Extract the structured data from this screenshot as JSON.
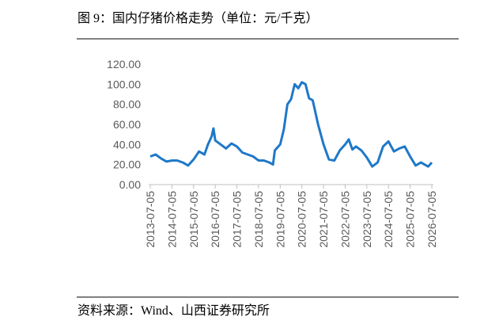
{
  "chart_data": {
    "type": "line",
    "title": "图 9：国内仔猪价格走势（单位：元/千克）",
    "source": "资料来源：Wind、山西证券研究所",
    "ylim": [
      0,
      120
    ],
    "yticks": [
      {
        "value": 0,
        "label": "0.00"
      },
      {
        "value": 20,
        "label": "20.00"
      },
      {
        "value": 40,
        "label": "40.00"
      },
      {
        "value": 60,
        "label": "60.00"
      },
      {
        "value": 80,
        "label": "80.00"
      },
      {
        "value": 100,
        "label": "100.00"
      },
      {
        "value": 120,
        "label": "120.00"
      }
    ],
    "xlim": [
      "2013-07-05",
      "2026-07-05"
    ],
    "xticks": [
      "2013-07-05",
      "2014-07-05",
      "2015-07-05",
      "2016-07-05",
      "2017-07-05",
      "2018-07-05",
      "2019-07-05",
      "2020-07-05",
      "2021-07-05",
      "2022-07-05",
      "2023-07-05",
      "2024-07-05",
      "2025-07-05",
      "2026-07-05"
    ],
    "x": [
      "2013-07-05",
      "2013-10-05",
      "2014-01-05",
      "2014-04-05",
      "2014-07-05",
      "2014-10-05",
      "2015-01-05",
      "2015-04-05",
      "2015-07-05",
      "2015-10-05",
      "2016-01-05",
      "2016-03-05",
      "2016-05-05",
      "2016-06-05",
      "2016-07-05",
      "2016-10-05",
      "2017-01-05",
      "2017-04-05",
      "2017-07-05",
      "2017-10-05",
      "2018-01-05",
      "2018-04-05",
      "2018-07-05",
      "2018-10-05",
      "2019-01-05",
      "2019-03-05",
      "2019-04-05",
      "2019-07-05",
      "2019-09-05",
      "2019-11-05",
      "2020-01-05",
      "2020-03-05",
      "2020-05-05",
      "2020-07-05",
      "2020-09-05",
      "2020-11-05",
      "2021-01-05",
      "2021-04-05",
      "2021-07-05",
      "2021-10-05",
      "2022-01-05",
      "2022-04-05",
      "2022-07-05",
      "2022-09-05",
      "2022-11-05",
      "2023-01-05",
      "2023-04-05",
      "2023-07-05",
      "2023-10-05",
      "2024-01-05",
      "2024-04-05",
      "2024-07-05",
      "2024-10-05",
      "2025-01-05",
      "2025-04-05",
      "2025-07-05",
      "2025-10-05",
      "2026-01-05",
      "2026-03-05",
      "2026-05-05",
      "2026-07-05"
    ],
    "series": [
      {
        "color": "#1f78c8",
        "values": [
          28,
          30,
          26,
          23,
          24,
          24,
          22,
          19,
          25,
          33,
          30,
          40,
          48,
          56,
          44,
          40,
          36,
          41,
          38,
          32,
          30,
          28,
          24,
          24,
          22,
          20,
          34,
          40,
          55,
          80,
          85,
          100,
          96,
          102,
          100,
          86,
          84,
          60,
          40,
          25,
          24,
          34,
          40,
          45,
          35,
          38,
          34,
          27,
          18,
          22,
          38,
          43,
          33,
          36,
          38,
          28,
          19,
          22,
          20,
          18,
          22
        ]
      }
    ]
  }
}
